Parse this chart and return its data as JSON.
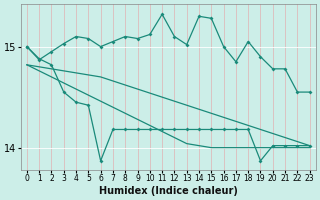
{
  "xlabel": "Humidex (Indice chaleur)",
  "bg_color": "#cceee8",
  "line_color": "#1a8a7a",
  "grid_color": "#bbdddd",
  "xlim": [
    -0.5,
    23.5
  ],
  "ylim": [
    13.78,
    15.42
  ],
  "yticks": [
    14,
    15
  ],
  "xticks": [
    0,
    1,
    2,
    3,
    4,
    5,
    6,
    7,
    8,
    9,
    10,
    11,
    12,
    13,
    14,
    15,
    16,
    17,
    18,
    19,
    20,
    21,
    22,
    23
  ],
  "line_upper_volatile": [
    15.0,
    14.87,
    14.95,
    15.03,
    15.1,
    15.08,
    15.0,
    15.05,
    15.1,
    15.08,
    15.12,
    15.32,
    15.1,
    15.02,
    15.3,
    15.28,
    15.0,
    14.85,
    15.05,
    14.9,
    14.78,
    14.78,
    14.55,
    14.55
  ],
  "line_lower_volatile": [
    15.0,
    14.88,
    14.82,
    14.55,
    14.45,
    14.42,
    13.87,
    14.18,
    14.18,
    14.18,
    14.18,
    14.18,
    14.18,
    14.18,
    14.18,
    14.18,
    14.18,
    14.18,
    14.18,
    13.87,
    14.02,
    14.02,
    14.02,
    14.02
  ],
  "line_upper_smooth": [
    14.82,
    14.8,
    14.78,
    14.76,
    14.74,
    14.72,
    14.7,
    14.66,
    14.62,
    14.58,
    14.54,
    14.5,
    14.46,
    14.42,
    14.38,
    14.34,
    14.3,
    14.26,
    14.22,
    14.18,
    14.14,
    14.1,
    14.06,
    14.02
  ],
  "line_lower_smooth": [
    14.82,
    14.76,
    14.7,
    14.64,
    14.58,
    14.52,
    14.46,
    14.4,
    14.34,
    14.28,
    14.22,
    14.16,
    14.1,
    14.04,
    14.02,
    14.0,
    14.0,
    14.0,
    14.0,
    14.0,
    14.0,
    14.0,
    14.0,
    14.0
  ]
}
